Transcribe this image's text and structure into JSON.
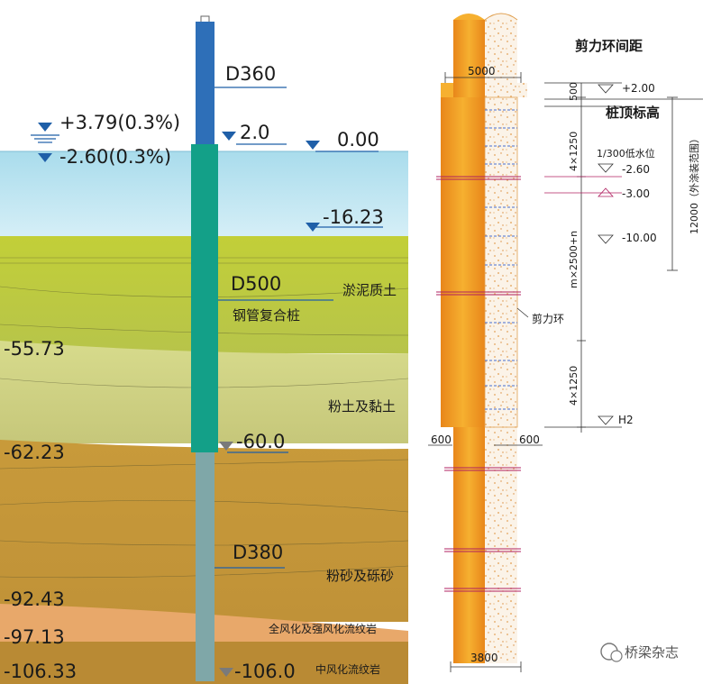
{
  "left": {
    "water_high": "+3.79(0.3%)",
    "water_low": "-2.60(0.3%)",
    "elevations": {
      "pile_top": "2.0",
      "datum": "0.00",
      "seabed": "-16.23",
      "e1": "-55.73",
      "e2": "-62.23",
      "steel_bottom": "-60.0",
      "e3": "-92.43",
      "e4": "-97.13",
      "e5": "-106.33",
      "pile_bottom": "-106.0"
    },
    "pile": {
      "top_dia": "D360",
      "mid_dia": "D500",
      "mid_name": "钢管复合桩",
      "bottom_dia": "D380"
    },
    "layers": {
      "l1": "淤泥质土",
      "l2": "粉土及黏土",
      "l3": "粉砂及砾砂",
      "l4": "全风化及强风化流纹岩",
      "l5": "中风化流纹岩"
    }
  },
  "right": {
    "title": "剪力环间距",
    "dim_top": "5000",
    "dim_500": "500",
    "dim_4x1250_a": "4×1250",
    "dim_mx2500": "m×2500+n",
    "dim_4x1250_b": "4×1250",
    "dim_12000": "12000（外涂装范围）",
    "elev_top": "+2.00",
    "elev_top_label": "桩顶标高",
    "water_label": "1/300低水位",
    "elev_water": "-2.60",
    "elev_3": "-3.00",
    "elev_10": "-10.00",
    "elev_h2": "H2",
    "shear_ring": "剪力环",
    "dim_600_left": "600",
    "dim_600_right": "600",
    "dim_bottom": "3800"
  },
  "watermark": "桥梁杂志",
  "colors": {
    "water": "#bfe4f0",
    "silt": "#c9d63c",
    "clay": "#c8d08a",
    "sand": "#c79a3c",
    "rock1": "#e8a86a",
    "rock2": "#b98a34",
    "pile_top": "#2e6fb8",
    "pile_mid": "#13a088",
    "pile_bottom": "#7fa7a8",
    "steel": "#f1a21c"
  }
}
